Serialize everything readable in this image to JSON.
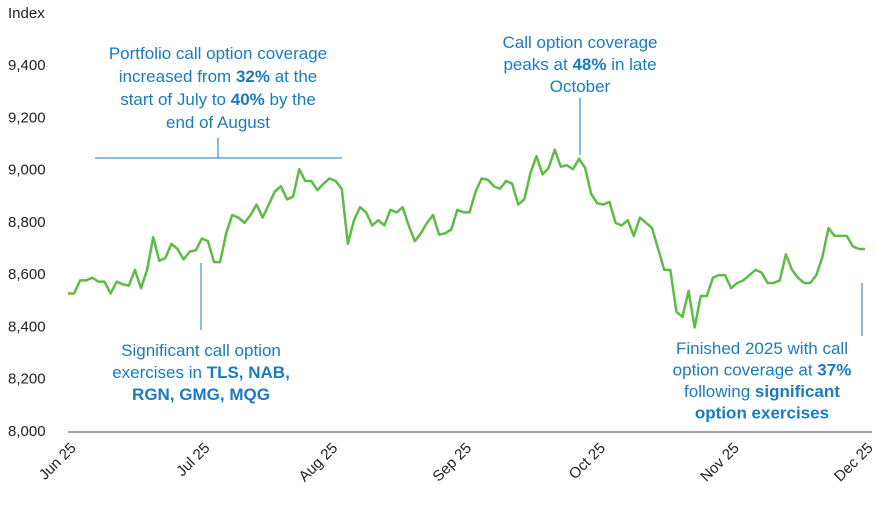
{
  "chart_data": {
    "type": "line",
    "y_label": "Index",
    "categories": [
      "Jun 25",
      null,
      null,
      null,
      null,
      null,
      null,
      null,
      null,
      null,
      null,
      null,
      null,
      null,
      null,
      null,
      null,
      null,
      null,
      null,
      null,
      null,
      "Jul 25",
      null,
      null,
      null,
      null,
      null,
      null,
      null,
      null,
      null,
      null,
      null,
      null,
      null,
      null,
      null,
      null,
      null,
      null,
      null,
      null,
      "Aug 25",
      null,
      null,
      null,
      null,
      null,
      null,
      null,
      null,
      null,
      null,
      null,
      null,
      null,
      null,
      null,
      null,
      null,
      null,
      null,
      null,
      null,
      "Sep 25",
      null,
      null,
      null,
      null,
      null,
      null,
      null,
      null,
      null,
      null,
      null,
      null,
      null,
      null,
      null,
      null,
      null,
      null,
      null,
      null,
      null,
      "Oct 25",
      null,
      null,
      null,
      null,
      null,
      null,
      null,
      null,
      null,
      null,
      null,
      null,
      null,
      null,
      null,
      null,
      null,
      null,
      null,
      null,
      null,
      "Nov 25",
      null,
      null,
      null,
      null,
      null,
      null,
      null,
      null,
      null,
      null,
      null,
      null,
      null,
      null,
      null,
      null,
      null,
      null,
      null,
      null,
      null,
      "Dec 25"
    ],
    "series": [
      {
        "color": "#5dbb46",
        "values": [
          8530,
          8530,
          8580,
          8580,
          8590,
          8575,
          8575,
          8530,
          8575,
          8565,
          8560,
          8620,
          8550,
          8620,
          8745,
          8655,
          8665,
          8720,
          8700,
          8660,
          8690,
          8695,
          8740,
          8730,
          8650,
          8650,
          8760,
          8830,
          8820,
          8800,
          8830,
          8870,
          8820,
          8870,
          8920,
          8940,
          8890,
          8900,
          9005,
          8960,
          8960,
          8925,
          8950,
          8970,
          8960,
          8930,
          8720,
          8810,
          8860,
          8840,
          8790,
          8810,
          8790,
          8850,
          8840,
          8860,
          8790,
          8730,
          8760,
          8800,
          8830,
          8755,
          8760,
          8775,
          8850,
          8840,
          8840,
          8920,
          8970,
          8965,
          8940,
          8930,
          8960,
          8950,
          8870,
          8890,
          8990,
          9055,
          8985,
          9010,
          9080,
          9015,
          9020,
          9005,
          9045,
          9010,
          8910,
          8875,
          8870,
          8880,
          8800,
          8790,
          8810,
          8750,
          8820,
          8800,
          8780,
          8700,
          8620,
          8620,
          8460,
          8440,
          8540,
          8400,
          8520,
          8520,
          8590,
          8600,
          8600,
          8550,
          8570,
          8580,
          8600,
          8620,
          8610,
          8570,
          8570,
          8580,
          8680,
          8620,
          8590,
          8570,
          8570,
          8600,
          8670,
          8780,
          8750,
          8750,
          8750,
          8710,
          8700,
          8700
        ]
      }
    ],
    "ylim": [
      8000,
      9400
    ],
    "yticks": [
      {
        "value": 8000,
        "label": "8,000"
      },
      {
        "value": 8200,
        "label": "8,200"
      },
      {
        "value": 8400,
        "label": "8,400"
      },
      {
        "value": 8600,
        "label": "8,600"
      },
      {
        "value": 8800,
        "label": "8,800"
      },
      {
        "value": 9000,
        "label": "9,000"
      },
      {
        "value": 9200,
        "label": "9,200"
      },
      {
        "value": 9400,
        "label": "9,400"
      }
    ],
    "grid": false,
    "annotations": [
      {
        "lines": [
          [
            {
              "t": "Portfolio call option coverage"
            }
          ],
          [
            {
              "t": "increased from "
            },
            {
              "t": "32%",
              "b": true
            },
            {
              "t": " at the"
            }
          ],
          [
            {
              "t": "start of July to "
            },
            {
              "t": "40%",
              "b": true
            },
            {
              "t": " by the"
            }
          ],
          [
            {
              "t": "end of August"
            }
          ]
        ]
      },
      {
        "lines": [
          [
            {
              "t": "Call option coverage"
            }
          ],
          [
            {
              "t": "peaks at "
            },
            {
              "t": "48%",
              "b": true
            },
            {
              "t": " in late"
            }
          ],
          [
            {
              "t": "October"
            }
          ]
        ]
      },
      {
        "lines": [
          [
            {
              "t": "Significant call option"
            }
          ],
          [
            {
              "t": "exercises in "
            },
            {
              "t": "TLS, NAB,",
              "b": true
            }
          ],
          [
            {
              "t": "RGN, GMG, MQG",
              "b": true
            }
          ]
        ]
      },
      {
        "lines": [
          [
            {
              "t": "Finished 2025 with call"
            }
          ],
          [
            {
              "t": "option coverage at "
            },
            {
              "t": "37%",
              "b": true
            }
          ],
          [
            {
              "t": "following "
            },
            {
              "t": "significant",
              "b": true
            }
          ],
          [
            {
              "t": "option exercises",
              "b": true
            }
          ]
        ]
      }
    ]
  }
}
